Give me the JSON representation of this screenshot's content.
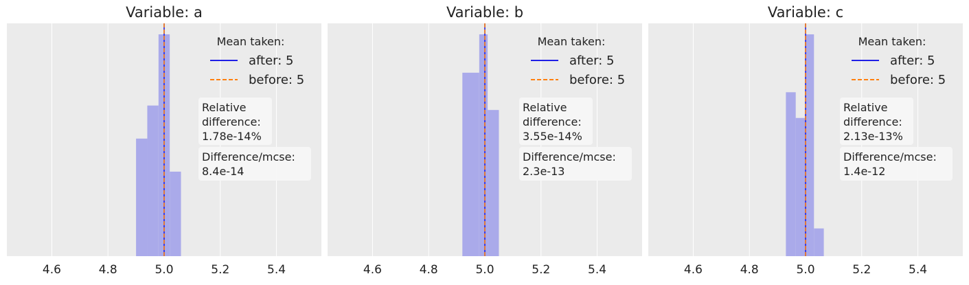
{
  "chart_data": [
    {
      "type": "bar",
      "title": "Variable: a",
      "xlim": [
        4.44,
        5.56
      ],
      "xticks": [
        "4.6",
        "4.8",
        "5.0",
        "5.2",
        "5.4"
      ],
      "bins": [
        {
          "x0": 4.9,
          "x1": 4.94,
          "height": 0.53
        },
        {
          "x0": 4.94,
          "x1": 4.98,
          "height": 0.679
        },
        {
          "x0": 4.98,
          "x1": 5.02,
          "height": 1.0
        },
        {
          "x0": 5.02,
          "x1": 5.06,
          "height": 0.381
        }
      ],
      "mean_after": 5.0,
      "mean_before": 5.0,
      "legend": {
        "title": "Mean taken:",
        "after_label": "after: 5",
        "before_label": "before: 5"
      },
      "rel_diff": {
        "line1": "Relative",
        "line2": "difference:",
        "line3": "1.78e-14%"
      },
      "mcse": {
        "line1": "Difference/mcse:",
        "line2": "8.4e-14"
      }
    },
    {
      "type": "bar",
      "title": "Variable: b",
      "xlim": [
        4.44,
        5.56
      ],
      "xticks": [
        "4.6",
        "4.8",
        "5.0",
        "5.2",
        "5.4"
      ],
      "bins": [
        {
          "x0": 4.92,
          "x1": 4.98,
          "height": 0.827
        },
        {
          "x0": 4.98,
          "x1": 5.01,
          "height": 1.0
        },
        {
          "x0": 5.01,
          "x1": 5.05,
          "height": 0.659
        }
      ],
      "mean_after": 5.0,
      "mean_before": 5.0,
      "legend": {
        "title": "Mean taken:",
        "after_label": "after: 5",
        "before_label": "before: 5"
      },
      "rel_diff": {
        "line1": "Relative",
        "line2": "difference:",
        "line3": "3.55e-14%"
      },
      "mcse": {
        "line1": "Difference/mcse:",
        "line2": "2.3e-13"
      }
    },
    {
      "type": "bar",
      "title": "Variable: c",
      "xlim": [
        4.44,
        5.56
      ],
      "xticks": [
        "4.6",
        "4.8",
        "5.0",
        "5.2",
        "5.4"
      ],
      "bins": [
        {
          "x0": 4.93,
          "x1": 4.965,
          "height": 0.739
        },
        {
          "x0": 4.965,
          "x1": 5.0,
          "height": 0.623
        },
        {
          "x0": 5.0,
          "x1": 5.03,
          "height": 1.0
        },
        {
          "x0": 5.03,
          "x1": 5.065,
          "height": 0.125
        }
      ],
      "mean_after": 5.0,
      "mean_before": 5.0,
      "legend": {
        "title": "Mean taken:",
        "after_label": "after: 5",
        "before_label": "before: 5"
      },
      "rel_diff": {
        "line1": "Relative",
        "line2": "difference:",
        "line3": "2.13e-13%"
      },
      "mcse": {
        "line1": "Difference/mcse:",
        "line2": "1.4e-12"
      }
    }
  ],
  "colors": {
    "background": "#ebebeb",
    "grid": "#ffffff",
    "bar": "#aaaaea",
    "after_line": "#1f1fe6",
    "before_line": "#ff7f0e",
    "text": "#222222"
  }
}
